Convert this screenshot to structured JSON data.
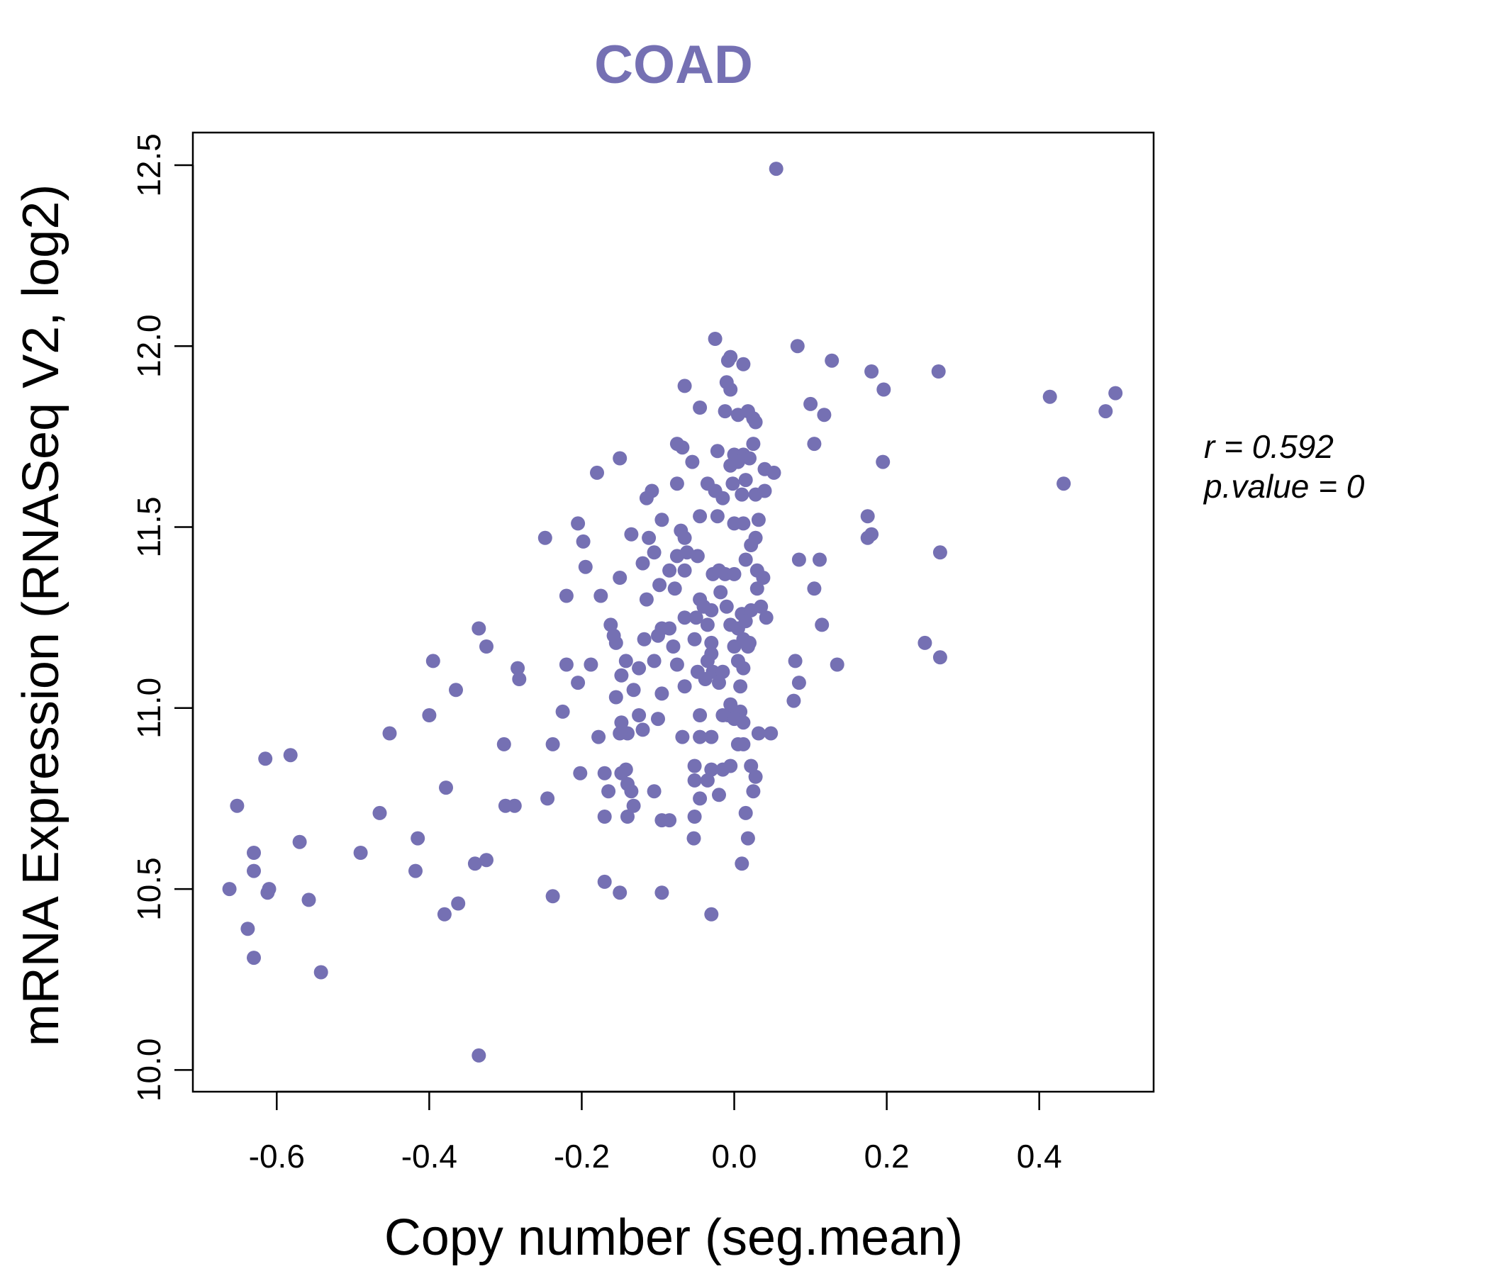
{
  "colors": {
    "point": "#7570B3",
    "title": "#7570B3",
    "axis": "#000000"
  },
  "annotations": {
    "r_text": "r = 0.592",
    "p_text": "p.value = 0"
  },
  "chart_data": {
    "type": "scatter",
    "title": "COAD",
    "xlabel": "Copy number (seg.mean)",
    "ylabel": "mRNA Expression (RNASeq V2, log2)",
    "xlim": [
      -0.71,
      0.55
    ],
    "ylim": [
      9.94,
      12.59
    ],
    "xticks": [
      -0.6,
      -0.4,
      -0.2,
      0.0,
      0.2,
      0.4
    ],
    "xtick_labels": [
      "-0.6",
      "-0.4",
      "-0.2",
      "0.0",
      "0.2",
      "0.4"
    ],
    "yticks": [
      10.0,
      10.5,
      11.0,
      11.5,
      12.0,
      12.5
    ],
    "ytick_labels": [
      "10.0",
      "10.5",
      "11.0",
      "11.5",
      "12.0",
      "12.5"
    ],
    "grid": false,
    "series": [
      {
        "name": "COAD samples",
        "points": [
          [
            0.055,
            12.49
          ],
          [
            -0.025,
            12.02
          ],
          [
            0.083,
            12.0
          ],
          [
            -0.005,
            11.97
          ],
          [
            -0.008,
            11.96
          ],
          [
            0.012,
            11.95
          ],
          [
            0.128,
            11.96
          ],
          [
            0.18,
            11.93
          ],
          [
            0.268,
            11.93
          ],
          [
            0.196,
            11.88
          ],
          [
            -0.065,
            11.89
          ],
          [
            -0.01,
            11.9
          ],
          [
            -0.005,
            11.88
          ],
          [
            0.414,
            11.86
          ],
          [
            0.5,
            11.87
          ],
          [
            0.487,
            11.82
          ],
          [
            0.1,
            11.84
          ],
          [
            0.118,
            11.81
          ],
          [
            -0.045,
            11.83
          ],
          [
            -0.012,
            11.82
          ],
          [
            0.005,
            11.81
          ],
          [
            0.018,
            11.82
          ],
          [
            0.025,
            11.8
          ],
          [
            0.028,
            11.79
          ],
          [
            0.105,
            11.73
          ],
          [
            -0.075,
            11.73
          ],
          [
            -0.068,
            11.72
          ],
          [
            -0.022,
            11.71
          ],
          [
            0.0,
            11.7
          ],
          [
            0.025,
            11.73
          ],
          [
            -0.055,
            11.68
          ],
          [
            0.012,
            11.7
          ],
          [
            0.02,
            11.69
          ],
          [
            0.195,
            11.68
          ],
          [
            -0.15,
            11.69
          ],
          [
            -0.18,
            11.65
          ],
          [
            -0.005,
            11.67
          ],
          [
            0.005,
            11.68
          ],
          [
            0.04,
            11.66
          ],
          [
            0.052,
            11.65
          ],
          [
            -0.075,
            11.62
          ],
          [
            -0.035,
            11.62
          ],
          [
            -0.002,
            11.62
          ],
          [
            0.015,
            11.63
          ],
          [
            0.432,
            11.62
          ],
          [
            -0.115,
            11.58
          ],
          [
            -0.108,
            11.6
          ],
          [
            -0.025,
            11.6
          ],
          [
            -0.015,
            11.58
          ],
          [
            0.01,
            11.59
          ],
          [
            0.028,
            11.59
          ],
          [
            0.04,
            11.6
          ],
          [
            -0.045,
            11.53
          ],
          [
            -0.022,
            11.53
          ],
          [
            0.0,
            11.51
          ],
          [
            0.012,
            11.51
          ],
          [
            0.032,
            11.52
          ],
          [
            0.175,
            11.53
          ],
          [
            -0.205,
            11.51
          ],
          [
            -0.095,
            11.52
          ],
          [
            -0.07,
            11.49
          ],
          [
            0.18,
            11.48
          ],
          [
            0.175,
            11.47
          ],
          [
            -0.248,
            11.47
          ],
          [
            -0.198,
            11.46
          ],
          [
            -0.135,
            11.48
          ],
          [
            -0.112,
            11.47
          ],
          [
            -0.065,
            11.47
          ],
          [
            0.022,
            11.45
          ],
          [
            0.028,
            11.47
          ],
          [
            -0.105,
            11.43
          ],
          [
            -0.075,
            11.42
          ],
          [
            -0.062,
            11.43
          ],
          [
            -0.048,
            11.42
          ],
          [
            0.015,
            11.41
          ],
          [
            0.085,
            11.41
          ],
          [
            0.112,
            11.41
          ],
          [
            0.27,
            11.43
          ],
          [
            -0.195,
            11.39
          ],
          [
            -0.12,
            11.4
          ],
          [
            -0.085,
            11.38
          ],
          [
            -0.065,
            11.38
          ],
          [
            -0.028,
            11.37
          ],
          [
            -0.02,
            11.38
          ],
          [
            -0.012,
            11.37
          ],
          [
            0.0,
            11.37
          ],
          [
            0.03,
            11.38
          ],
          [
            0.038,
            11.36
          ],
          [
            -0.15,
            11.36
          ],
          [
            -0.098,
            11.34
          ],
          [
            -0.078,
            11.33
          ],
          [
            -0.045,
            11.3
          ],
          [
            -0.018,
            11.32
          ],
          [
            0.03,
            11.33
          ],
          [
            0.105,
            11.33
          ],
          [
            -0.22,
            11.31
          ],
          [
            -0.175,
            11.31
          ],
          [
            -0.115,
            11.3
          ],
          [
            -0.04,
            11.28
          ],
          [
            -0.03,
            11.27
          ],
          [
            -0.01,
            11.28
          ],
          [
            0.01,
            11.26
          ],
          [
            0.022,
            11.27
          ],
          [
            0.035,
            11.28
          ],
          [
            -0.065,
            11.25
          ],
          [
            -0.05,
            11.25
          ],
          [
            -0.035,
            11.23
          ],
          [
            -0.005,
            11.23
          ],
          [
            0.005,
            11.22
          ],
          [
            0.015,
            11.24
          ],
          [
            0.042,
            11.25
          ],
          [
            -0.162,
            11.23
          ],
          [
            -0.095,
            11.22
          ],
          [
            -0.085,
            11.22
          ],
          [
            0.115,
            11.23
          ],
          [
            -0.335,
            11.22
          ],
          [
            -0.158,
            11.2
          ],
          [
            -0.118,
            11.19
          ],
          [
            -0.1,
            11.2
          ],
          [
            -0.052,
            11.19
          ],
          [
            -0.03,
            11.18
          ],
          [
            0.012,
            11.19
          ],
          [
            0.02,
            11.18
          ],
          [
            0.25,
            11.18
          ],
          [
            -0.325,
            11.17
          ],
          [
            -0.155,
            11.18
          ],
          [
            -0.08,
            11.17
          ],
          [
            0.0,
            11.17
          ],
          [
            0.018,
            11.17
          ],
          [
            -0.03,
            11.15
          ],
          [
            -0.142,
            11.13
          ],
          [
            -0.105,
            11.13
          ],
          [
            -0.035,
            11.13
          ],
          [
            0.005,
            11.13
          ],
          [
            0.08,
            11.13
          ],
          [
            0.135,
            11.12
          ],
          [
            0.27,
            11.14
          ],
          [
            -0.22,
            11.12
          ],
          [
            -0.188,
            11.12
          ],
          [
            -0.125,
            11.11
          ],
          [
            -0.075,
            11.12
          ],
          [
            -0.048,
            11.1
          ],
          [
            -0.028,
            11.1
          ],
          [
            -0.015,
            11.1
          ],
          [
            0.012,
            11.11
          ],
          [
            -0.148,
            11.09
          ],
          [
            -0.395,
            11.13
          ],
          [
            -0.284,
            11.11
          ],
          [
            -0.282,
            11.08
          ],
          [
            -0.205,
            11.07
          ],
          [
            -0.038,
            11.08
          ],
          [
            -0.02,
            11.07
          ],
          [
            0.085,
            11.07
          ],
          [
            -0.065,
            11.06
          ],
          [
            0.008,
            11.06
          ],
          [
            -0.365,
            11.05
          ],
          [
            -0.132,
            11.05
          ],
          [
            -0.095,
            11.04
          ],
          [
            -0.155,
            11.03
          ],
          [
            0.078,
            11.02
          ],
          [
            -0.005,
            11.01
          ],
          [
            -0.008,
            10.98
          ],
          [
            0.008,
            10.99
          ],
          [
            -0.225,
            10.99
          ],
          [
            -0.045,
            10.98
          ],
          [
            -0.015,
            10.98
          ],
          [
            0.0,
            10.97
          ],
          [
            -0.4,
            10.98
          ],
          [
            -0.125,
            10.98
          ],
          [
            -0.1,
            10.97
          ],
          [
            -0.148,
            10.96
          ],
          [
            0.012,
            10.96
          ],
          [
            -0.452,
            10.93
          ],
          [
            -0.14,
            10.93
          ],
          [
            -0.178,
            10.92
          ],
          [
            -0.068,
            10.92
          ],
          [
            -0.045,
            10.92
          ],
          [
            -0.03,
            10.92
          ],
          [
            0.032,
            10.93
          ],
          [
            0.048,
            10.93
          ],
          [
            -0.15,
            10.93
          ],
          [
            -0.12,
            10.94
          ],
          [
            -0.302,
            10.9
          ],
          [
            -0.238,
            10.9
          ],
          [
            0.005,
            10.9
          ],
          [
            0.012,
            10.9
          ],
          [
            -0.615,
            10.86
          ],
          [
            -0.582,
            10.87
          ],
          [
            -0.052,
            10.84
          ],
          [
            -0.03,
            10.83
          ],
          [
            -0.015,
            10.83
          ],
          [
            -0.005,
            10.84
          ],
          [
            0.022,
            10.84
          ],
          [
            -0.202,
            10.82
          ],
          [
            -0.17,
            10.82
          ],
          [
            -0.142,
            10.83
          ],
          [
            -0.148,
            10.82
          ],
          [
            0.028,
            10.81
          ],
          [
            -0.378,
            10.78
          ],
          [
            -0.14,
            10.79
          ],
          [
            -0.052,
            10.8
          ],
          [
            -0.035,
            10.8
          ],
          [
            -0.165,
            10.77
          ],
          [
            -0.135,
            10.77
          ],
          [
            -0.105,
            10.77
          ],
          [
            0.025,
            10.77
          ],
          [
            -0.652,
            10.73
          ],
          [
            -0.3,
            10.73
          ],
          [
            -0.288,
            10.73
          ],
          [
            -0.245,
            10.75
          ],
          [
            -0.045,
            10.75
          ],
          [
            -0.02,
            10.76
          ],
          [
            -0.132,
            10.73
          ],
          [
            -0.465,
            10.71
          ],
          [
            0.015,
            10.71
          ],
          [
            -0.17,
            10.7
          ],
          [
            -0.14,
            10.7
          ],
          [
            -0.085,
            10.69
          ],
          [
            -0.052,
            10.7
          ],
          [
            -0.095,
            10.69
          ],
          [
            -0.415,
            10.64
          ],
          [
            -0.57,
            10.63
          ],
          [
            -0.053,
            10.64
          ],
          [
            0.018,
            10.64
          ],
          [
            -0.49,
            10.6
          ],
          [
            -0.63,
            10.6
          ],
          [
            -0.325,
            10.58
          ],
          [
            -0.34,
            10.57
          ],
          [
            0.01,
            10.57
          ],
          [
            -0.418,
            10.55
          ],
          [
            -0.63,
            10.55
          ],
          [
            -0.17,
            10.52
          ],
          [
            -0.662,
            10.5
          ],
          [
            -0.61,
            10.5
          ],
          [
            -0.612,
            10.49
          ],
          [
            -0.15,
            10.49
          ],
          [
            -0.095,
            10.49
          ],
          [
            -0.238,
            10.48
          ],
          [
            -0.558,
            10.47
          ],
          [
            -0.362,
            10.46
          ],
          [
            -0.38,
            10.43
          ],
          [
            -0.03,
            10.43
          ],
          [
            -0.638,
            10.39
          ],
          [
            -0.63,
            10.31
          ],
          [
            -0.542,
            10.27
          ],
          [
            -0.335,
            10.04
          ]
        ]
      }
    ]
  }
}
